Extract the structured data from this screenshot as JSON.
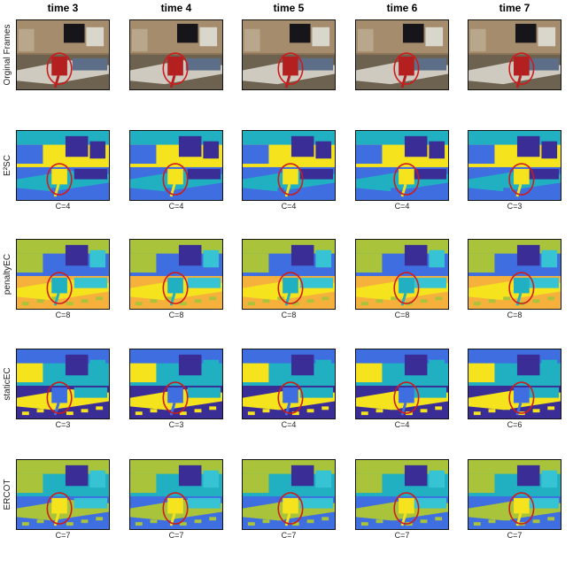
{
  "columns": [
    "time 3",
    "time 4",
    "time 5",
    "time 6",
    "time 7"
  ],
  "rows": [
    {
      "label": "Orginal Frames",
      "kind": "photo",
      "captions": [
        "",
        "",
        "",
        "",
        ""
      ]
    },
    {
      "label": "E²SC",
      "kind": "seg-e2sc",
      "captions": [
        "C=4",
        "C=4",
        "C=4",
        "C=4",
        "C=3"
      ]
    },
    {
      "label": "penaltyEC",
      "kind": "seg-penalty",
      "captions": [
        "C=8",
        "C=8",
        "C=8",
        "C=8",
        "C=8"
      ]
    },
    {
      "label": "staticEC",
      "kind": "seg-static",
      "captions": [
        "C=3",
        "C=3",
        "C=4",
        "C=4",
        "C=6"
      ]
    },
    {
      "label": "ERCOT",
      "kind": "seg-ercot",
      "captions": [
        "C=7",
        "C=7",
        "C=7",
        "C=7",
        "C=7"
      ]
    }
  ],
  "colors": {
    "yellow": "#f5e31e",
    "navy": "#3b2d96",
    "blue": "#3f6ee0",
    "teal": "#21b0c1",
    "cyan": "#36c3d4",
    "olive": "#a9c43a",
    "orange": "#f6b13c",
    "highlight_circle": "#d01a1a"
  }
}
